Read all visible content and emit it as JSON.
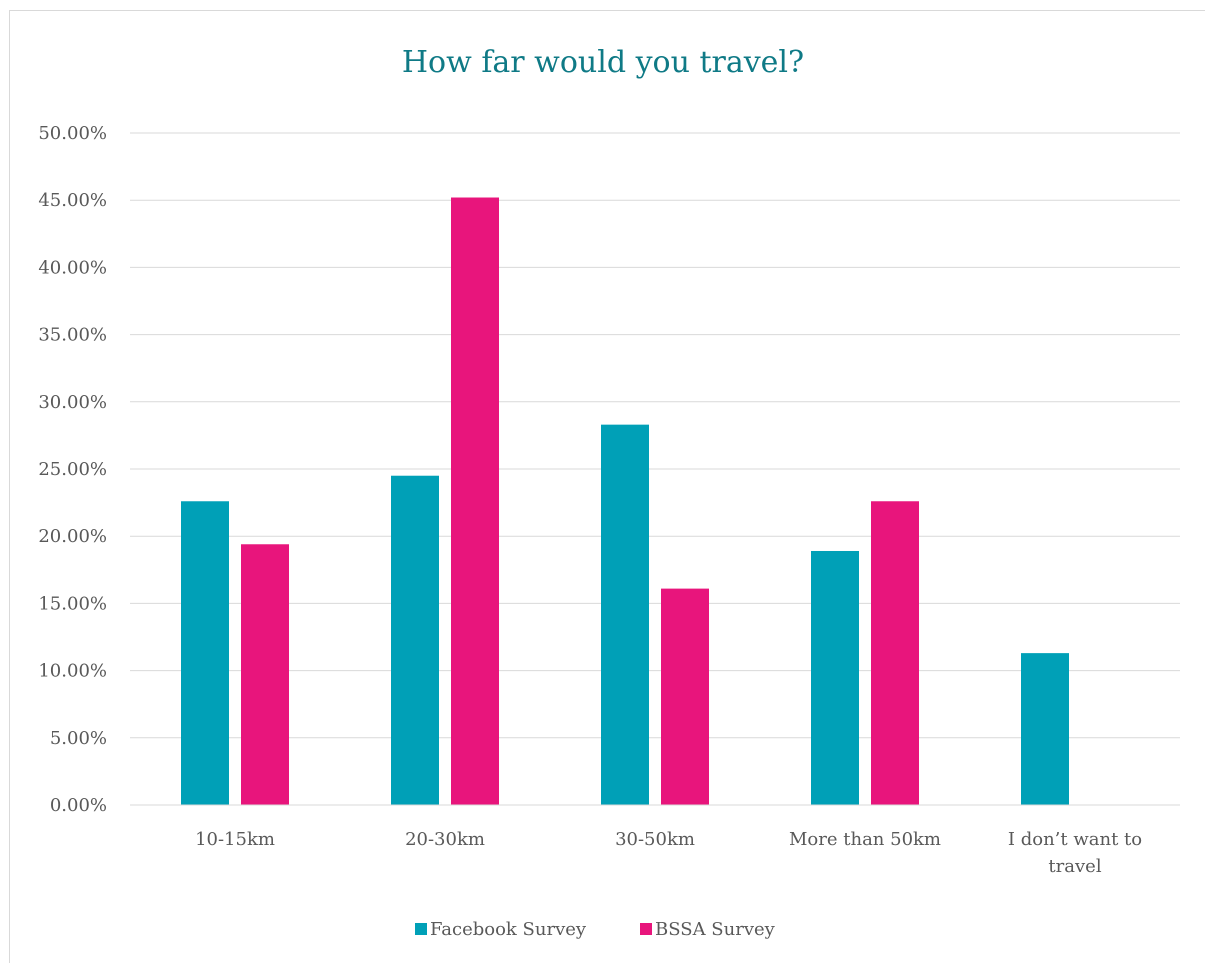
{
  "chart_data": {
    "type": "bar",
    "title": "How far would you travel?",
    "xlabel": "",
    "ylabel": "",
    "categories": [
      [
        "10-15km"
      ],
      [
        "20-30km"
      ],
      [
        "30-50km"
      ],
      [
        "More than 50km"
      ],
      [
        "I don’t want to",
        "travel"
      ]
    ],
    "series": [
      {
        "name": "Facebook Survey",
        "color": "#00a0b7",
        "values": [
          22.6,
          24.5,
          28.3,
          18.9,
          11.3
        ]
      },
      {
        "name": "BSSA Survey",
        "color": "#e8157c",
        "values": [
          19.4,
          45.2,
          16.1,
          22.6,
          0
        ]
      }
    ],
    "ylim": [
      0,
      50
    ],
    "yticks": [
      "0.00%",
      "5.00%",
      "10.00%",
      "15.00%",
      "20.00%",
      "25.00%",
      "30.00%",
      "35.00%",
      "40.00%",
      "45.00%",
      "50.00%"
    ],
    "grid": true,
    "legend_position": "bottom"
  }
}
